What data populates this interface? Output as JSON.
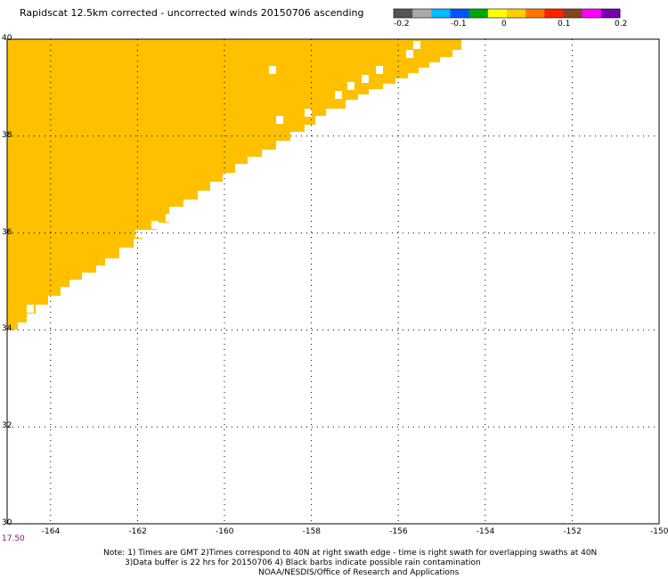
{
  "title": "Rapidscat 12.5km corrected - uncorrected winds 20150706 ascending",
  "colorbar": {
    "colors": [
      "#555555",
      "#aaaaaa",
      "#00bbff",
      "#0055ff",
      "#00aa00",
      "#ffff00",
      "#ffcc00",
      "#ff7700",
      "#ff2200",
      "#884422",
      "#ff00ff",
      "#7700aa"
    ],
    "tick_labels": [
      "-0.2",
      "-0.1",
      "0",
      "0.1",
      "0.2"
    ]
  },
  "map": {
    "lon_labels": [
      "-164",
      "-162",
      "-160",
      "-158",
      "-156",
      "-154",
      "-152",
      "-150"
    ],
    "lat_labels": [
      "40",
      "38",
      "36",
      "34",
      "32",
      "30"
    ],
    "swath_color": "#ffc000",
    "swath_value": 0
  },
  "time_label": "17.50",
  "notes": {
    "line1": "Note: 1) Times are GMT 2)Times correspond to 40N at right swath edge - time is right swath for overlapping swaths at 40N",
    "line2": "3)Data buffer is 22 hrs for 20150706 4) Black barbs indicate possible rain contamination",
    "line3": "NOAA/NESDIS/Office of Research and Applications"
  }
}
